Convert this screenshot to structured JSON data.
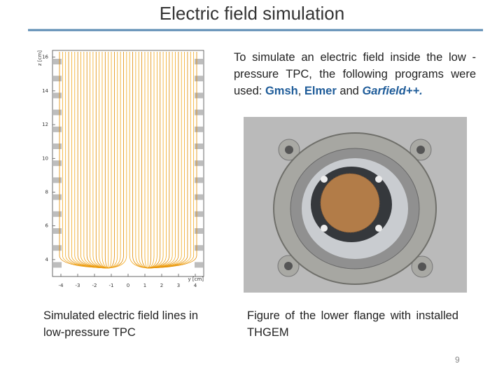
{
  "title": "Electric field simulation",
  "intro": {
    "parts": [
      "To simulate an electric field inside the low -pressure TPC, the following programs were used: ",
      "Gmsh",
      ", ",
      "Elmer",
      " and ",
      "Garfield++",
      "."
    ]
  },
  "plot": {
    "x_label": "y [cm]",
    "y_label": "z [cm]",
    "xlim": [
      -4.5,
      4.5
    ],
    "ylim": [
      3,
      16.4
    ],
    "xticks": [
      -4,
      -3,
      -2,
      -1,
      0,
      1,
      2,
      3,
      4
    ],
    "yticks": [
      4,
      6,
      8,
      10,
      12,
      14,
      16
    ]
  },
  "captions": {
    "left": "Simulated electric field lines in low-pressure TPC",
    "right": "Figure of the lower flange with installed THGEM"
  },
  "page_number": "9"
}
